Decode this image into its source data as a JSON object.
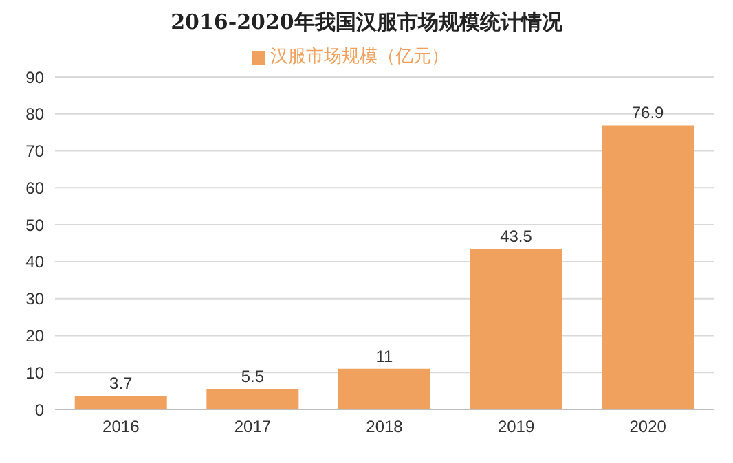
{
  "chart_data": {
    "type": "bar",
    "title": "2016-2020年我国汉服市场规模统计情况",
    "categories": [
      "2016",
      "2017",
      "2018",
      "2019",
      "2020"
    ],
    "series": [
      {
        "name": "汉服市场规模（亿元）",
        "color": "#f0a15e",
        "values": [
          3.7,
          5.5,
          11,
          43.5,
          76.9
        ]
      }
    ],
    "ylim": [
      0,
      90
    ],
    "yticks": [
      0,
      10,
      20,
      30,
      40,
      50,
      60,
      70,
      80,
      90
    ],
    "grid": "y",
    "legend": "top",
    "data_labels": true
  }
}
